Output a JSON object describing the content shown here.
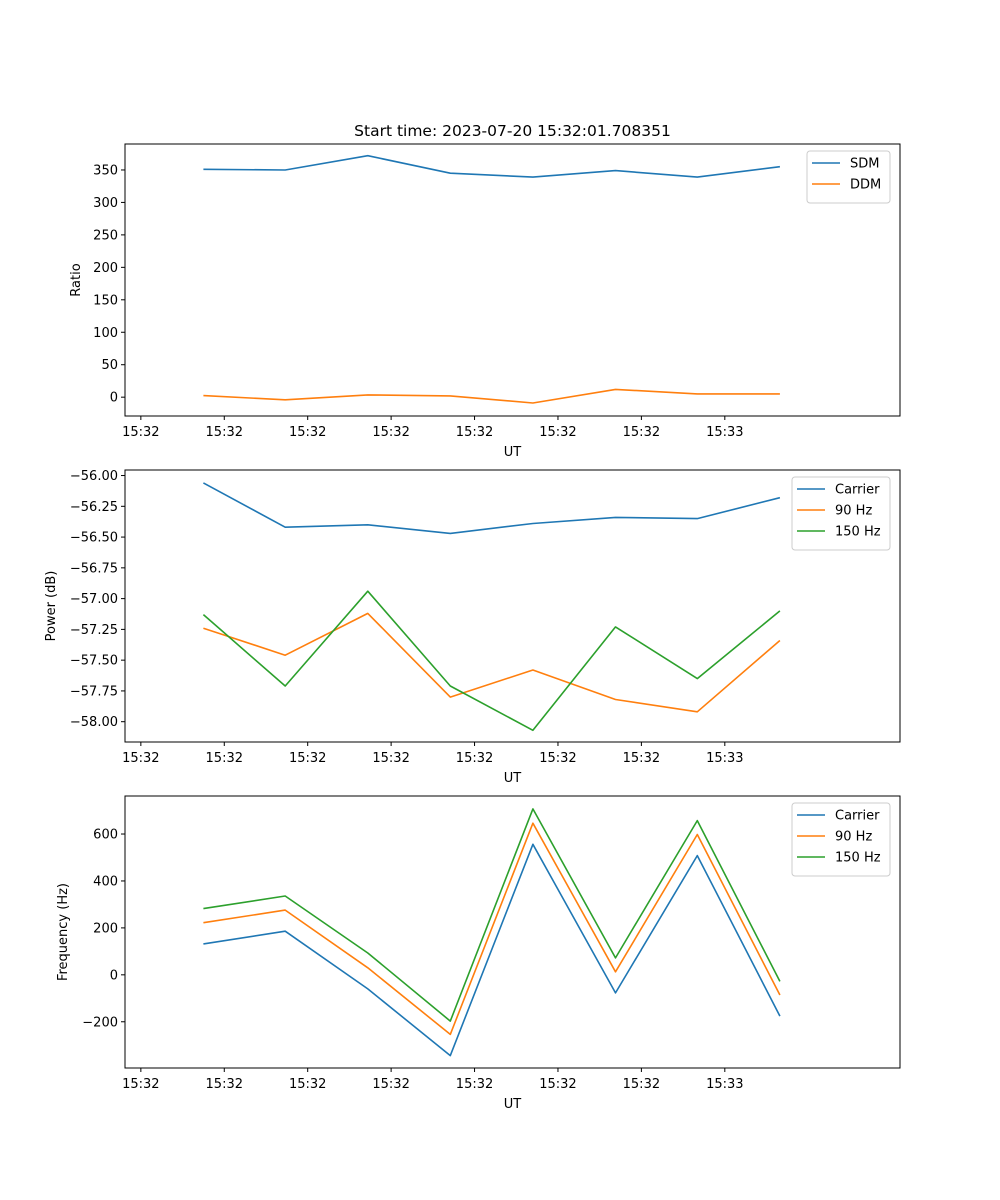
{
  "figure": {
    "title": "Start time: 2023-07-20 15:32:01.708351"
  },
  "chart_data": [
    {
      "type": "line",
      "title": "Start time: 2023-07-20 15:32:01.708351",
      "xlabel": "UT",
      "ylabel": "Ratio",
      "x_ticks": [
        "15:32",
        "15:32",
        "15:32",
        "15:32",
        "15:32",
        "15:32",
        "15:32",
        "15:33"
      ],
      "xlim": [
        -0.19,
        9.1
      ],
      "ylim": [
        -29,
        390
      ],
      "y_ticks": [
        0,
        50,
        100,
        150,
        200,
        250,
        300,
        350
      ],
      "y_tick_labels": [
        "0",
        "50",
        "100",
        "150",
        "200",
        "250",
        "300",
        "350"
      ],
      "legend": "top-right",
      "x": [
        0.75,
        1.73,
        2.72,
        3.71,
        4.7,
        5.69,
        6.67,
        7.66
      ],
      "series": [
        {
          "name": "SDM",
          "color": "#1f77b4",
          "values": [
            351,
            350,
            372,
            345,
            339,
            349,
            339,
            355
          ]
        },
        {
          "name": "DDM",
          "color": "#ff7f0e",
          "values": [
            2.5,
            -4,
            3.5,
            2,
            -9,
            12,
            5,
            5
          ]
        }
      ]
    },
    {
      "type": "line",
      "xlabel": "UT",
      "ylabel": "Power (dB)",
      "x_ticks": [
        "15:32",
        "15:32",
        "15:32",
        "15:32",
        "15:32",
        "15:32",
        "15:32",
        "15:33"
      ],
      "xlim": [
        -0.19,
        9.1
      ],
      "ylim": [
        -58.165,
        -55.955
      ],
      "y_ticks": [
        -58.0,
        -57.75,
        -57.5,
        -57.25,
        -57.0,
        -56.75,
        -56.5,
        -56.25,
        -56.0
      ],
      "y_tick_labels": [
        "−58.00",
        "−57.75",
        "−57.50",
        "−57.25",
        "−57.00",
        "−56.75",
        "−56.50",
        "−56.25",
        "−56.00"
      ],
      "legend": "top-right",
      "x": [
        0.75,
        1.73,
        2.72,
        3.71,
        4.7,
        5.69,
        6.67,
        7.66
      ],
      "series": [
        {
          "name": "Carrier",
          "color": "#1f77b4",
          "values": [
            -56.06,
            -56.42,
            -56.4,
            -56.47,
            -56.39,
            -56.34,
            -56.35,
            -56.18
          ]
        },
        {
          "name": "90 Hz",
          "color": "#ff7f0e",
          "values": [
            -57.24,
            -57.46,
            -57.12,
            -57.8,
            -57.58,
            -57.82,
            -57.92,
            -57.34
          ]
        },
        {
          "name": "150 Hz",
          "color": "#2ca02c",
          "values": [
            -57.13,
            -57.71,
            -56.94,
            -57.71,
            -58.07,
            -57.23,
            -57.65,
            -57.1
          ]
        }
      ]
    },
    {
      "type": "line",
      "xlabel": "UT",
      "ylabel": "Frequency (Hz)",
      "x_ticks": [
        "15:32",
        "15:32",
        "15:32",
        "15:32",
        "15:32",
        "15:32",
        "15:32",
        "15:33"
      ],
      "xlim": [
        -0.19,
        9.1
      ],
      "ylim": [
        -397,
        762
      ],
      "y_ticks": [
        -200,
        0,
        200,
        400,
        600
      ],
      "y_tick_labels": [
        "−200",
        "0",
        "200",
        "400",
        "600"
      ],
      "legend": "top-right",
      "x": [
        0.75,
        1.73,
        2.72,
        3.71,
        4.7,
        5.69,
        6.67,
        7.66
      ],
      "series": [
        {
          "name": "Carrier",
          "color": "#1f77b4",
          "values": [
            132,
            186,
            -60,
            -344,
            556,
            -77,
            508,
            -176
          ]
        },
        {
          "name": "90 Hz",
          "color": "#ff7f0e",
          "values": [
            222,
            276,
            30,
            -254,
            646,
            13,
            598,
            -86
          ]
        },
        {
          "name": "150 Hz",
          "color": "#2ca02c",
          "values": [
            282,
            336,
            93,
            -197,
            707,
            72,
            657,
            -28
          ]
        }
      ]
    }
  ]
}
